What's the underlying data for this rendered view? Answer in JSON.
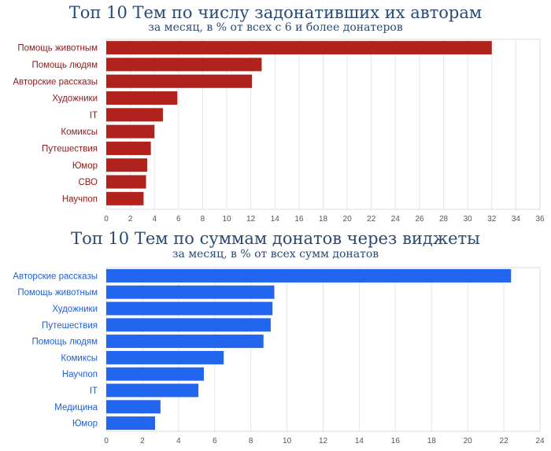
{
  "chart_data": [
    {
      "type": "bar",
      "orientation": "horizontal",
      "title": "Топ 10 Тем по числу задонативших их авторам",
      "subtitle": "за месяц, в % от всех с 6 и более донатеров",
      "categories": [
        "Помощь животным",
        "Помощь людям",
        "Авторские рассказы",
        "Художники",
        "IT",
        "Комиксы",
        "Путешествия",
        "Юмор",
        "СВО",
        "Научпоп"
      ],
      "values": [
        32.0,
        12.9,
        12.1,
        5.9,
        4.7,
        4.0,
        3.7,
        3.4,
        3.3,
        3.1
      ],
      "xlim": [
        0,
        36
      ],
      "xticks": [
        0,
        2,
        4,
        6,
        8,
        10,
        12,
        14,
        16,
        18,
        20,
        22,
        24,
        26,
        28,
        30,
        32,
        34,
        36
      ],
      "bar_color": "#b0221b",
      "label_color": "#8b1a1a",
      "grid": true
    },
    {
      "type": "bar",
      "orientation": "horizontal",
      "title": "Топ 10 Тем по суммам донатов через виджеты",
      "subtitle": "за месяц, в % от всех сумм донатов",
      "categories": [
        "Авторские рассказы",
        "Помощь животным",
        "Художники",
        "Путешествия",
        "Помощь людям",
        "Комиксы",
        "Научпоп",
        "IT",
        "Медицина",
        "Юмор"
      ],
      "values": [
        22.4,
        9.3,
        9.2,
        9.1,
        8.7,
        6.5,
        5.4,
        5.1,
        3.0,
        2.7
      ],
      "xlim": [
        0,
        24
      ],
      "xticks": [
        0,
        2,
        4,
        6,
        8,
        10,
        12,
        14,
        16,
        18,
        20,
        22,
        24
      ],
      "bar_color": "#2266f0",
      "label_color": "#1f5fd6",
      "grid": true
    }
  ]
}
